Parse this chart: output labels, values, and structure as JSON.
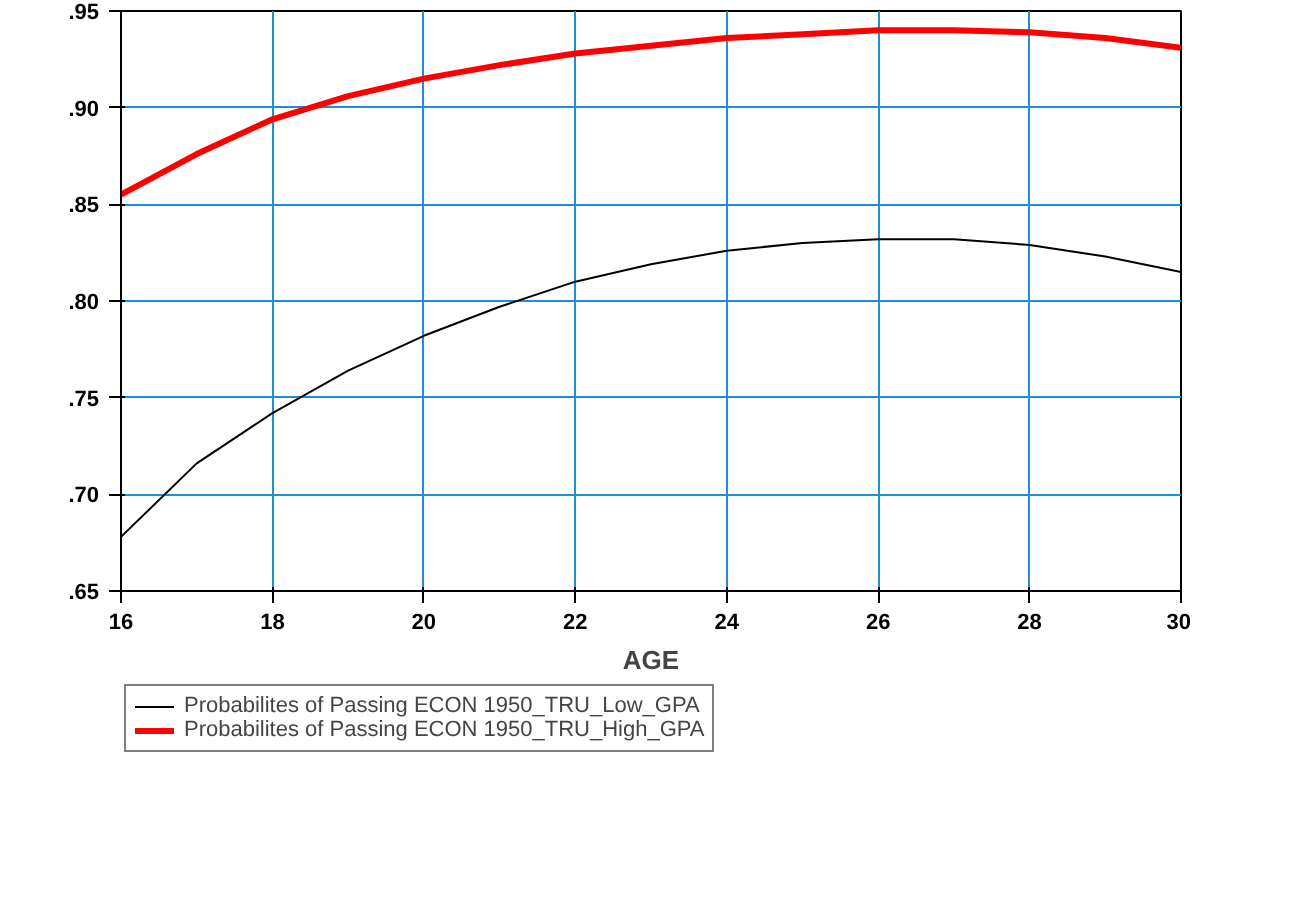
{
  "chart_data": {
    "type": "line",
    "xlabel": "AGE",
    "x": [
      16,
      17,
      18,
      19,
      20,
      21,
      22,
      23,
      24,
      25,
      26,
      27,
      28,
      29,
      30
    ],
    "series": [
      {
        "name": "Probabilites of Passing ECON 1950_TRU_Low_GPA",
        "color": "#000000",
        "values": [
          0.678,
          0.716,
          0.742,
          0.764,
          0.782,
          0.797,
          0.81,
          0.819,
          0.826,
          0.83,
          0.832,
          0.832,
          0.829,
          0.823,
          0.815
        ]
      },
      {
        "name": "Probabilites of Passing ECON 1950_TRU_High_GPA",
        "color": "#ff0000",
        "values": [
          0.855,
          0.876,
          0.894,
          0.906,
          0.915,
          0.922,
          0.928,
          0.932,
          0.936,
          0.938,
          0.94,
          0.94,
          0.939,
          0.936,
          0.931
        ]
      }
    ],
    "xlim": [
      16,
      30
    ],
    "xticks": [
      16,
      18,
      20,
      22,
      24,
      26,
      28,
      30
    ],
    "ylim": [
      0.65,
      0.95
    ],
    "yticks": [
      {
        "value": 0.65,
        "label": ".65"
      },
      {
        "value": 0.7,
        "label": ".70"
      },
      {
        "value": 0.75,
        "label": ".75"
      },
      {
        "value": 0.8,
        "label": ".80"
      },
      {
        "value": 0.85,
        "label": ".85"
      },
      {
        "value": 0.9,
        "label": ".90"
      },
      {
        "value": 0.95,
        "label": ".95"
      }
    ],
    "grid": true,
    "legend": "bottom",
    "line_style": "solid",
    "marker": "none"
  }
}
